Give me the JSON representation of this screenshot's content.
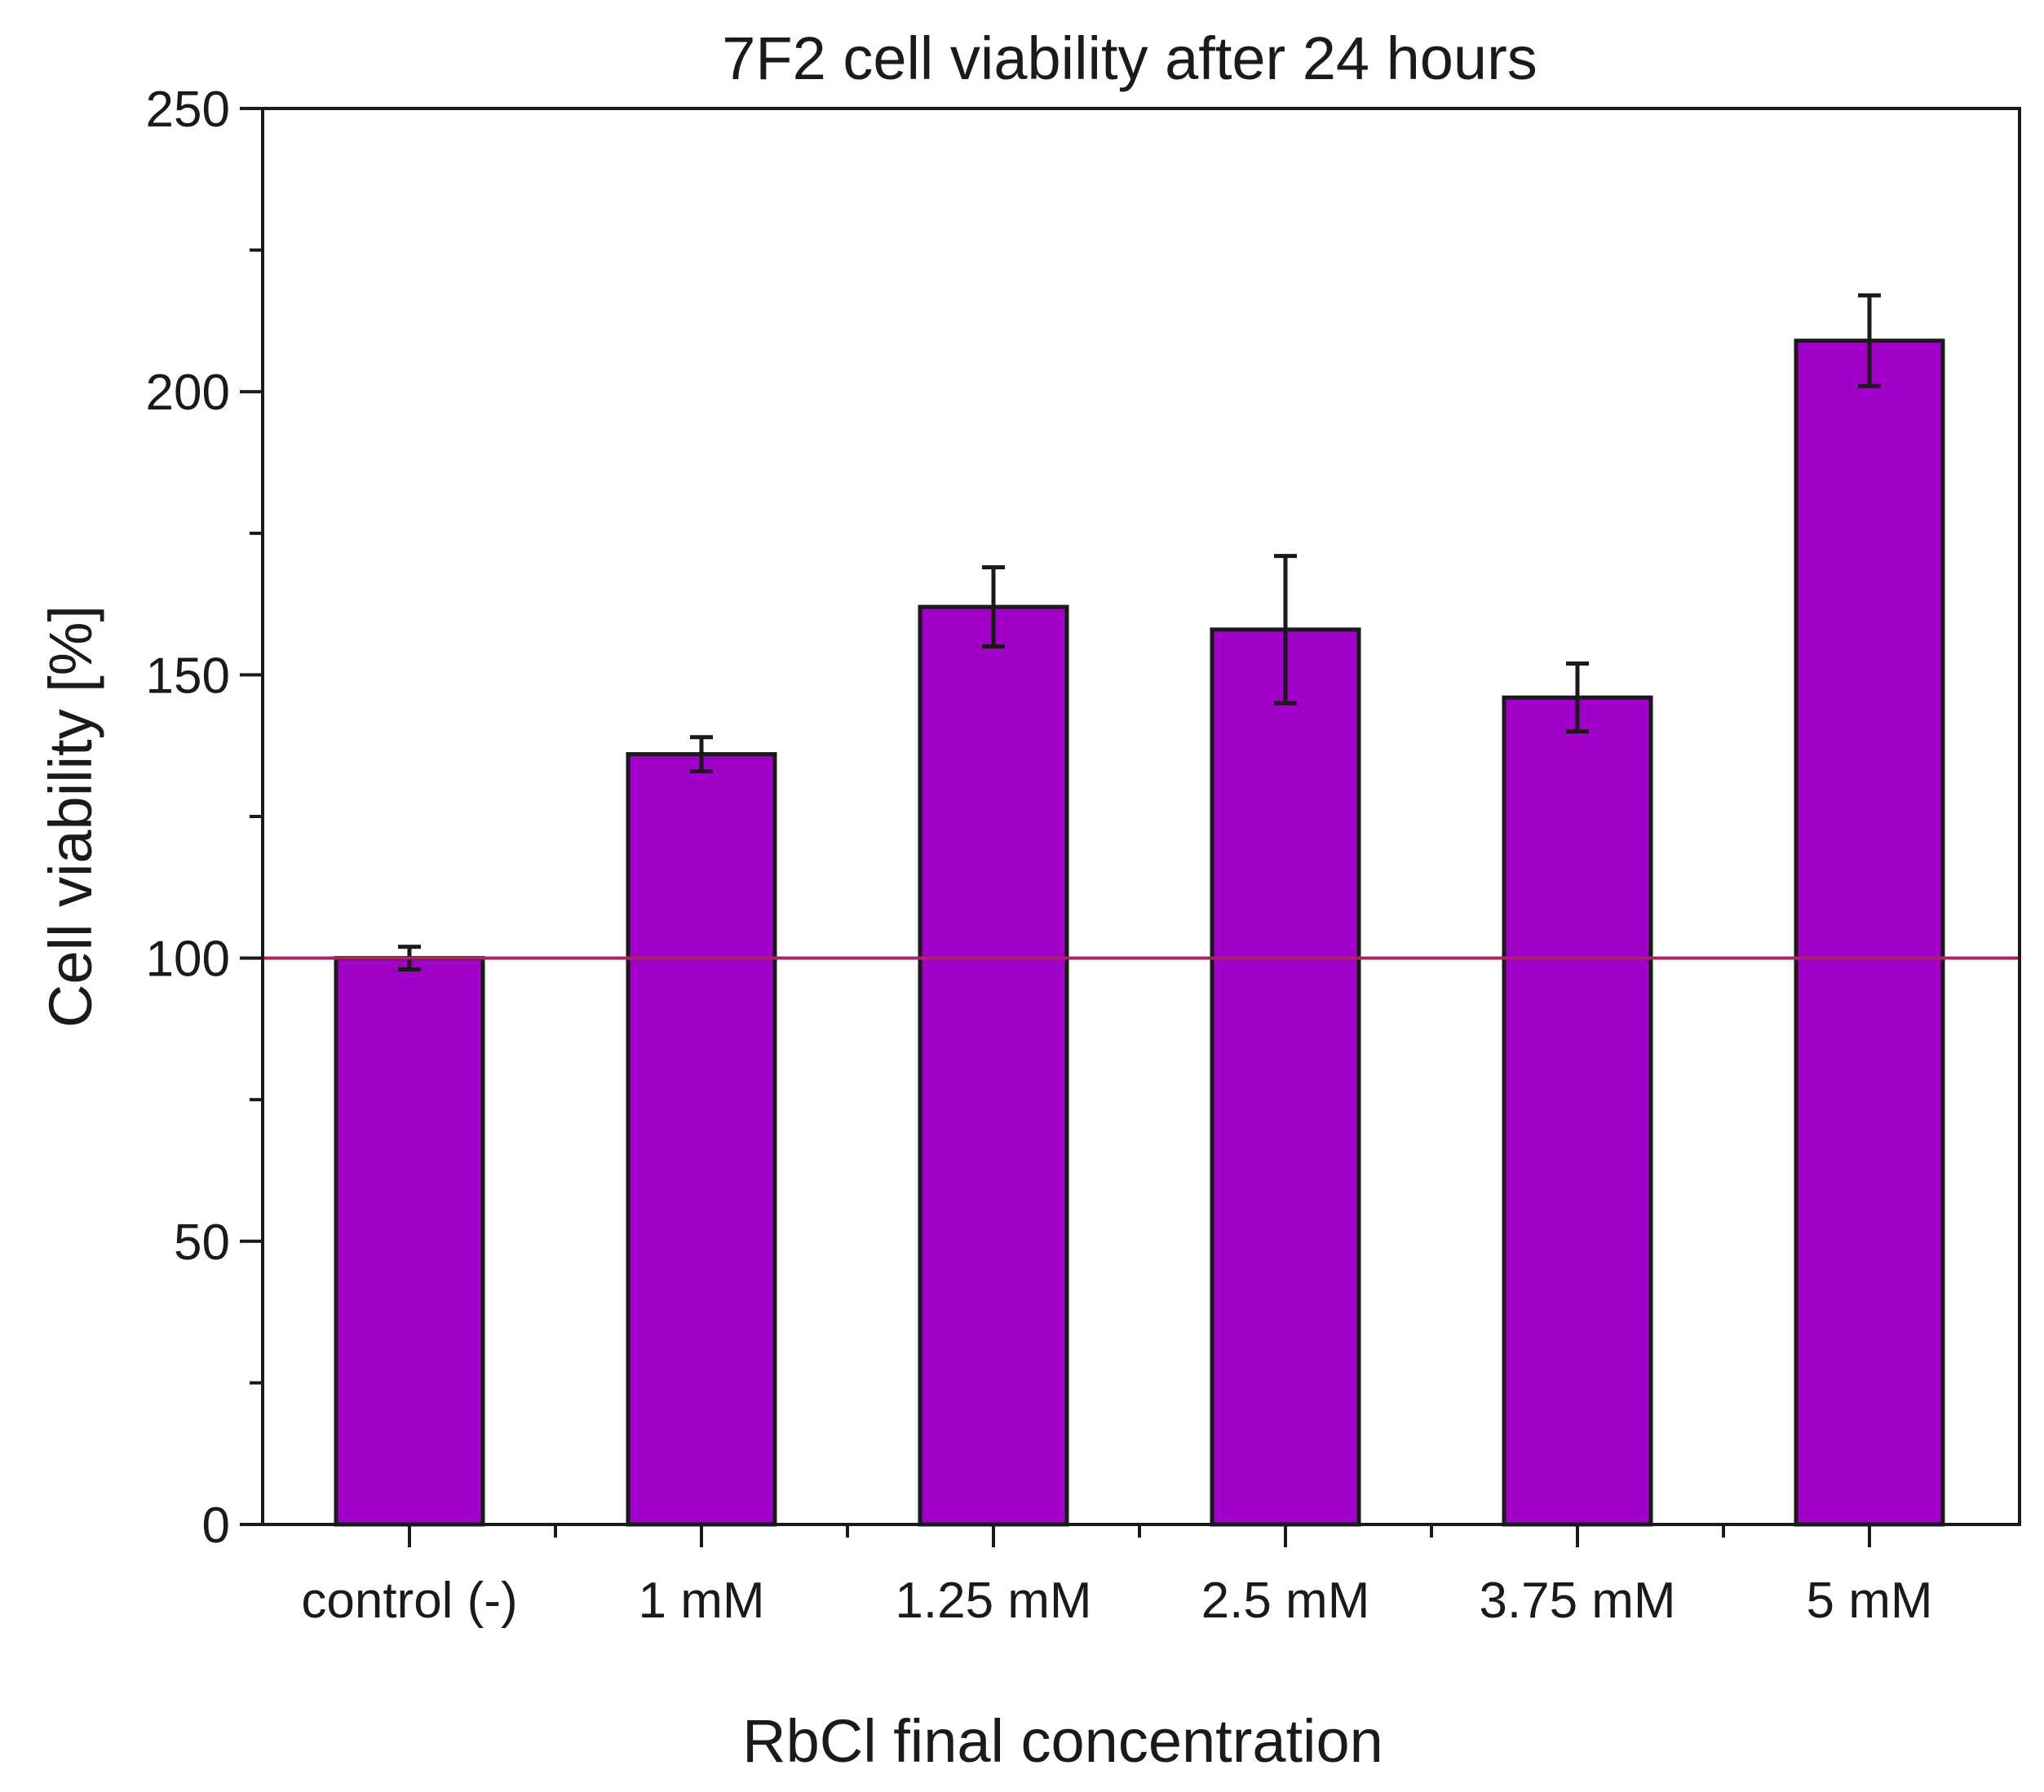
{
  "chart_data": {
    "type": "bar",
    "title": "7F2 cell viability after 24 hours",
    "xlabel": "RbCl final concentration",
    "ylabel": "Cell viability [%]",
    "categories": [
      "control (-)",
      "1 mM",
      "1.25 mM",
      "2.5 mM",
      "3.75 mM",
      "5 mM"
    ],
    "values": [
      100,
      136,
      162,
      158,
      146,
      209
    ],
    "errors": [
      2,
      3,
      7,
      13,
      6,
      8
    ],
    "ylim": [
      0,
      250
    ],
    "yticks": [
      0,
      50,
      100,
      150,
      200,
      250
    ],
    "reference_line": 100,
    "grid": false,
    "legend": "none"
  },
  "colors": {
    "bar_fill": "#a000c8",
    "bar_edge": "#1a1a1a",
    "reference_line": "#b0206a",
    "axis": "#1a1a1a"
  }
}
